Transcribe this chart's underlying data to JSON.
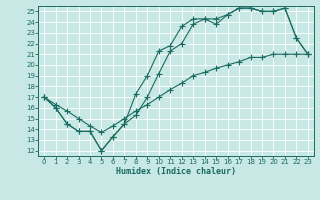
{
  "xlabel": "Humidex (Indice chaleur)",
  "xlim": [
    -0.5,
    23.5
  ],
  "ylim": [
    11.5,
    25.5
  ],
  "xticks": [
    0,
    1,
    2,
    3,
    4,
    5,
    6,
    7,
    8,
    9,
    10,
    11,
    12,
    13,
    14,
    15,
    16,
    17,
    18,
    19,
    20,
    21,
    22,
    23
  ],
  "yticks": [
    12,
    13,
    14,
    15,
    16,
    17,
    18,
    19,
    20,
    21,
    22,
    23,
    24,
    25
  ],
  "background_color": "#c8e8e5",
  "line_color": "#1a6b62",
  "grid_color": "#ffffff",
  "line1_x": [
    0,
    1,
    2,
    3,
    4,
    5,
    6,
    7,
    8,
    9,
    10,
    11,
    12,
    13,
    14,
    15,
    16,
    17,
    18,
    19,
    20,
    21,
    22,
    23
  ],
  "line1_y": [
    17.0,
    16.0,
    14.5,
    13.8,
    13.8,
    12.0,
    13.3,
    14.5,
    15.3,
    17.0,
    19.2,
    21.3,
    22.0,
    23.8,
    24.3,
    24.3,
    24.7,
    25.3,
    25.3,
    25.0,
    25.0,
    25.3,
    22.5,
    21.0
  ],
  "line2_x": [
    0,
    1,
    2,
    3,
    4,
    5,
    6,
    7,
    8,
    9,
    10,
    11,
    12,
    13,
    14,
    15,
    16,
    17,
    18,
    19,
    20,
    21,
    22,
    23
  ],
  "line2_y": [
    17.0,
    16.0,
    14.5,
    13.8,
    13.8,
    12.0,
    13.3,
    14.5,
    17.3,
    19.0,
    21.3,
    21.8,
    23.6,
    24.3,
    24.3,
    23.8,
    24.7,
    25.3,
    25.3,
    25.0,
    25.0,
    25.3,
    22.5,
    21.0
  ],
  "line3_x": [
    0,
    1,
    2,
    3,
    4,
    5,
    6,
    7,
    8,
    9,
    10,
    11,
    12,
    13,
    14,
    15,
    16,
    17,
    18,
    19,
    20,
    21,
    22,
    23
  ],
  "line3_y": [
    17.0,
    16.3,
    15.7,
    15.0,
    14.3,
    13.7,
    14.3,
    15.0,
    15.7,
    16.3,
    17.0,
    17.7,
    18.3,
    19.0,
    19.3,
    19.7,
    20.0,
    20.3,
    20.7,
    20.7,
    21.0,
    21.0,
    21.0,
    21.0
  ]
}
